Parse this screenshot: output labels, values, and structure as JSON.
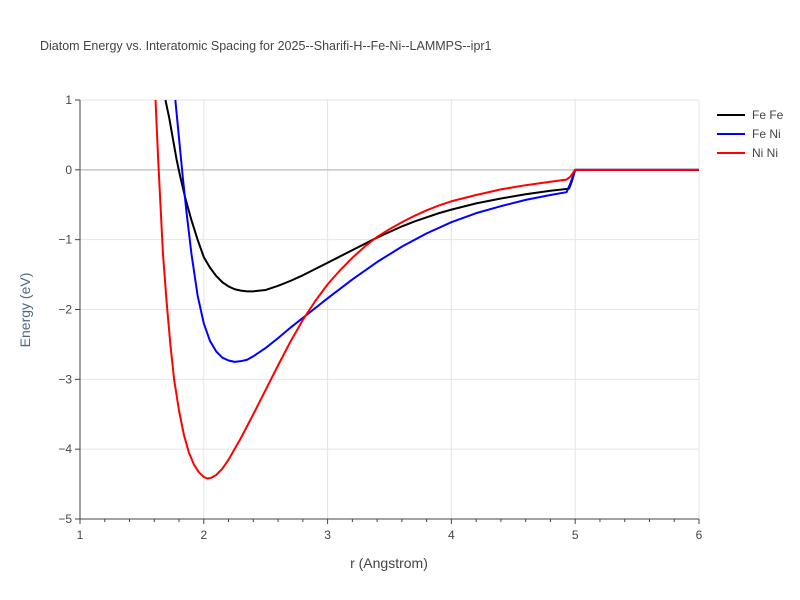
{
  "chart_data": {
    "type": "line",
    "title": "Diatom Energy vs. Interatomic Spacing for 2025--Sharifi-H--Fe-Ni--LAMMPS--ipr1",
    "xlabel": "r (Angstrom)",
    "ylabel": "Energy (eV)",
    "xlim": [
      1,
      6
    ],
    "ylim": [
      -5,
      1
    ],
    "xticks": [
      1,
      2,
      3,
      4,
      5,
      6
    ],
    "yticks": [
      -5,
      -4,
      -3,
      -2,
      -1,
      0,
      1
    ],
    "xtick_labels": [
      "1",
      "2",
      "3",
      "4",
      "5",
      "6"
    ],
    "ytick_labels": [
      "−5",
      "−4",
      "−3",
      "−2",
      "−1",
      "0",
      "1"
    ],
    "grid": true,
    "legend_position": "top-right",
    "series": [
      {
        "name": "Fe Fe",
        "color": "#000000",
        "x": [
          1.69,
          1.72,
          1.75,
          1.78,
          1.81,
          1.85,
          1.9,
          1.95,
          2.0,
          2.05,
          2.1,
          2.15,
          2.2,
          2.25,
          2.3,
          2.35,
          2.4,
          2.45,
          2.5,
          2.6,
          2.7,
          2.8,
          2.9,
          3.0,
          3.1,
          3.2,
          3.3,
          3.4,
          3.5,
          3.6,
          3.7,
          3.8,
          3.9,
          4.0,
          4.2,
          4.4,
          4.6,
          4.8,
          4.95,
          4.97,
          5.0,
          5.5,
          6.0
        ],
        "y": [
          1.0,
          0.75,
          0.45,
          0.15,
          -0.1,
          -0.4,
          -0.72,
          -1.0,
          -1.25,
          -1.4,
          -1.52,
          -1.61,
          -1.67,
          -1.71,
          -1.73,
          -1.74,
          -1.74,
          -1.73,
          -1.72,
          -1.66,
          -1.59,
          -1.51,
          -1.42,
          -1.33,
          -1.24,
          -1.15,
          -1.06,
          -0.97,
          -0.89,
          -0.81,
          -0.74,
          -0.68,
          -0.62,
          -0.57,
          -0.48,
          -0.41,
          -0.35,
          -0.3,
          -0.27,
          -0.18,
          0.0,
          0.0,
          0.0
        ]
      },
      {
        "name": "Fe Ni",
        "color": "#0000ff",
        "x": [
          1.77,
          1.8,
          1.83,
          1.86,
          1.9,
          1.95,
          2.0,
          2.05,
          2.1,
          2.15,
          2.2,
          2.25,
          2.3,
          2.35,
          2.4,
          2.5,
          2.6,
          2.7,
          2.8,
          2.9,
          3.0,
          3.2,
          3.4,
          3.6,
          3.8,
          4.0,
          4.2,
          4.4,
          4.6,
          4.8,
          4.93,
          4.96,
          5.0,
          5.5,
          6.0
        ],
        "y": [
          1.0,
          0.45,
          -0.1,
          -0.6,
          -1.2,
          -1.8,
          -2.2,
          -2.45,
          -2.6,
          -2.69,
          -2.73,
          -2.75,
          -2.74,
          -2.72,
          -2.67,
          -2.55,
          -2.41,
          -2.26,
          -2.12,
          -1.98,
          -1.84,
          -1.57,
          -1.32,
          -1.1,
          -0.91,
          -0.75,
          -0.62,
          -0.52,
          -0.43,
          -0.36,
          -0.32,
          -0.2,
          0.0,
          0.0,
          0.0
        ]
      },
      {
        "name": "Ni Ni",
        "color": "#ff0000",
        "x": [
          1.61,
          1.63,
          1.65,
          1.67,
          1.7,
          1.73,
          1.76,
          1.8,
          1.84,
          1.88,
          1.92,
          1.96,
          2.0,
          2.03,
          2.06,
          2.1,
          2.15,
          2.2,
          2.3,
          2.4,
          2.5,
          2.6,
          2.7,
          2.8,
          2.9,
          3.0,
          3.1,
          3.2,
          3.3,
          3.4,
          3.5,
          3.6,
          3.7,
          3.8,
          3.9,
          4.0,
          4.2,
          4.4,
          4.6,
          4.8,
          4.93,
          4.96,
          5.0,
          5.5,
          6.0
        ],
        "y": [
          1.0,
          0.2,
          -0.5,
          -1.2,
          -1.9,
          -2.5,
          -3.0,
          -3.45,
          -3.8,
          -4.05,
          -4.22,
          -4.33,
          -4.4,
          -4.42,
          -4.41,
          -4.37,
          -4.28,
          -4.15,
          -3.84,
          -3.5,
          -3.15,
          -2.8,
          -2.46,
          -2.15,
          -1.88,
          -1.64,
          -1.44,
          -1.26,
          -1.1,
          -0.96,
          -0.85,
          -0.75,
          -0.66,
          -0.58,
          -0.51,
          -0.45,
          -0.36,
          -0.28,
          -0.22,
          -0.17,
          -0.14,
          -0.1,
          0.0,
          0.0,
          0.0
        ]
      }
    ]
  }
}
